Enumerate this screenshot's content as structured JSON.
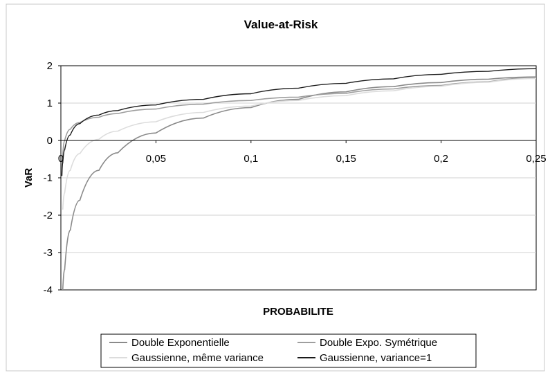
{
  "chart_data": {
    "type": "line",
    "title": "Value-at-Risk",
    "xlabel": "PROBABILITE",
    "ylabel": "VaR",
    "xlim": [
      0,
      0.25
    ],
    "ylim": [
      -4,
      2
    ],
    "grid": "horizontal",
    "legend_position": "bottom",
    "x_ticks": [
      {
        "value": 0,
        "label": "0"
      },
      {
        "value": 0.05,
        "label": "0,05"
      },
      {
        "value": 0.1,
        "label": "0,1"
      },
      {
        "value": 0.15,
        "label": "0,15"
      },
      {
        "value": 0.2,
        "label": "0,2"
      },
      {
        "value": 0.25,
        "label": "0,25"
      }
    ],
    "y_ticks": [
      {
        "value": 2,
        "label": "2"
      },
      {
        "value": 1,
        "label": "1"
      },
      {
        "value": 0,
        "label": "0"
      },
      {
        "value": -1,
        "label": "-1"
      },
      {
        "value": -2,
        "label": "-2"
      },
      {
        "value": -3,
        "label": "-3"
      },
      {
        "value": -4,
        "label": "-4"
      }
    ],
    "series": [
      {
        "name": "Double Exponentielle",
        "color": "#8a8a8a",
        "x": [
          0.001,
          0.002,
          0.005,
          0.01,
          0.02,
          0.03,
          0.05,
          0.075,
          0.1,
          0.125,
          0.15,
          0.175,
          0.2,
          0.225,
          0.25
        ],
        "y": [
          -4.0,
          -3.45,
          -2.4,
          -1.6,
          -0.8,
          -0.33,
          0.2,
          0.6,
          0.88,
          1.1,
          1.3,
          1.44,
          1.55,
          1.64,
          1.7
        ]
      },
      {
        "name": "Double Expo. Symétrique",
        "color": "#9e9e9e",
        "x": [
          0.0005,
          0.001,
          0.002,
          0.005,
          0.01,
          0.02,
          0.03,
          0.05,
          0.075,
          0.1,
          0.125,
          0.15,
          0.175,
          0.2,
          0.225,
          0.25
        ],
        "y": [
          -0.95,
          -0.4,
          0.0,
          0.3,
          0.48,
          0.62,
          0.72,
          0.84,
          0.97,
          1.07,
          1.16,
          1.26,
          1.38,
          1.47,
          1.57,
          1.68
        ]
      },
      {
        "name": "Gaussienne, même variance",
        "color": "#dcdcdc",
        "x": [
          0.001,
          0.002,
          0.005,
          0.01,
          0.02,
          0.03,
          0.05,
          0.075,
          0.1,
          0.125,
          0.15,
          0.175,
          0.2,
          0.225,
          0.25
        ],
        "y": [
          -1.85,
          -1.4,
          -0.8,
          -0.35,
          0.03,
          0.25,
          0.5,
          0.75,
          0.92,
          1.07,
          1.2,
          1.33,
          1.45,
          1.56,
          1.66
        ]
      },
      {
        "name": "Gaussienne,  variance=1",
        "color": "#1a1a1a",
        "x": [
          0.0005,
          0.001,
          0.002,
          0.005,
          0.01,
          0.02,
          0.03,
          0.05,
          0.075,
          0.1,
          0.125,
          0.15,
          0.175,
          0.2,
          0.225,
          0.25
        ],
        "y": [
          -0.95,
          -0.6,
          -0.25,
          0.15,
          0.45,
          0.68,
          0.8,
          0.95,
          1.1,
          1.25,
          1.4,
          1.53,
          1.65,
          1.77,
          1.85,
          1.92
        ]
      }
    ]
  }
}
